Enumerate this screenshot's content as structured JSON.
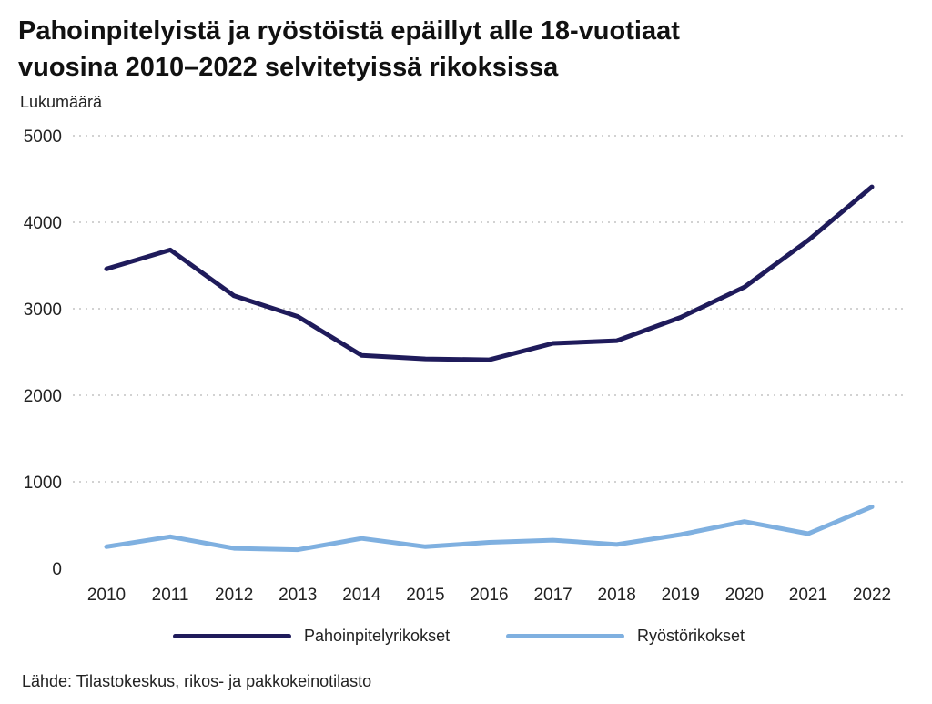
{
  "title": {
    "line1": "Pahoinpitelyistä ja ryöstöistä epäillyt alle 18-vuotiaat",
    "line2": "vuosina 2010–2022 selvitetyissä rikoksissa"
  },
  "source": "Lähde: Tilastokeskus, rikos- ja pakkokeinotilasto",
  "chart_data": {
    "type": "line",
    "ylabel": "Lukumäärä",
    "xlabel": "",
    "ylim": [
      0,
      5000
    ],
    "yticks": [
      0,
      1000,
      2000,
      3000,
      4000,
      5000
    ],
    "grid": true,
    "legend_position": "bottom",
    "x": [
      "2010",
      "2011",
      "2012",
      "2013",
      "2014",
      "2015",
      "2016",
      "2017",
      "2018",
      "2019",
      "2020",
      "2021",
      "2022"
    ],
    "series": [
      {
        "name": "Pahoinpitelyrikokset",
        "color": "#1f1b5b",
        "values": [
          3460,
          3680,
          3150,
          2910,
          2460,
          2420,
          2410,
          2600,
          2630,
          2900,
          3250,
          3790,
          4410
        ]
      },
      {
        "name": "Ryöstörikokset",
        "color": "#7fb0e0",
        "values": [
          250,
          365,
          230,
          215,
          345,
          250,
          300,
          325,
          275,
          390,
          540,
          400,
          710
        ]
      }
    ]
  }
}
